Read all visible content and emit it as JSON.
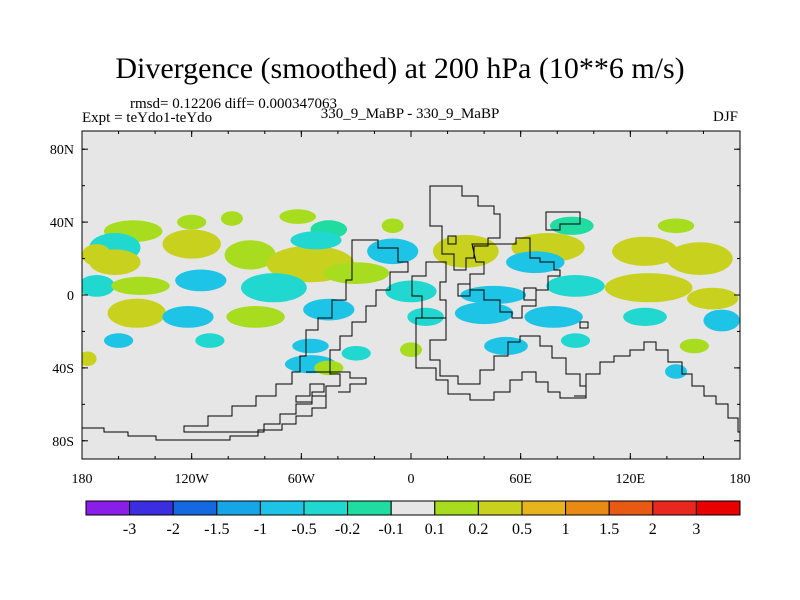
{
  "chart_data": {
    "type": "contour-map",
    "title": "Divergence (smoothed) at 200 hPa (10**6 m/s)",
    "stats": "rmsd= 0.12206 diff= 0.000347063",
    "left_label": "Expt = teYdo1-teYdo",
    "center_label": "330_9_MaBP - 330_9_MaBP",
    "right_label": "DJF",
    "xlim": [
      -180,
      180
    ],
    "ylim": [
      -90,
      90
    ],
    "x_ticks": [
      {
        "value": -180,
        "label": "180"
      },
      {
        "value": -120,
        "label": "120W"
      },
      {
        "value": -60,
        "label": "60W"
      },
      {
        "value": 0,
        "label": "0"
      },
      {
        "value": 60,
        "label": "60E"
      },
      {
        "value": 120,
        "label": "120E"
      },
      {
        "value": 180,
        "label": "180"
      }
    ],
    "y_ticks": [
      {
        "value": 80,
        "label": "80N"
      },
      {
        "value": 40,
        "label": "40N"
      },
      {
        "value": 0,
        "label": "0"
      },
      {
        "value": -40,
        "label": "40S"
      },
      {
        "value": -80,
        "label": "80S"
      }
    ],
    "colorbar": {
      "labels": [
        "-3",
        "-2",
        "-1.5",
        "-1",
        "-0.5",
        "-0.2",
        "-0.1",
        "0.1",
        "0.2",
        "0.5",
        "1",
        "1.5",
        "2",
        "3"
      ],
      "colors": [
        "#8a1ee8",
        "#3a2ee0",
        "#1468e0",
        "#14a6e6",
        "#1ec4e6",
        "#20d8d0",
        "#20dca0",
        "#e6e6e6",
        "#a8dc1e",
        "#c8d21e",
        "#e8b41e",
        "#e88a14",
        "#e85a14",
        "#e8281e",
        "#e80000"
      ]
    },
    "map_background": "#e6e6e6",
    "blobs": [
      {
        "lon": -152,
        "lat": 35,
        "w": 16,
        "h": 6,
        "c": 8
      },
      {
        "lon": -120,
        "lat": 40,
        "w": 8,
        "h": 4,
        "c": 8
      },
      {
        "lon": -98,
        "lat": 42,
        "w": 6,
        "h": 4,
        "c": 8
      },
      {
        "lon": -62,
        "lat": 43,
        "w": 10,
        "h": 4,
        "c": 8
      },
      {
        "lon": -45,
        "lat": 36,
        "w": 10,
        "h": 5,
        "c": 6
      },
      {
        "lon": -10,
        "lat": 38,
        "w": 6,
        "h": 4,
        "c": 8
      },
      {
        "lon": 88,
        "lat": 38,
        "w": 12,
        "h": 5,
        "c": 6
      },
      {
        "lon": 145,
        "lat": 38,
        "w": 10,
        "h": 4,
        "c": 8
      },
      {
        "lon": -162,
        "lat": 26,
        "w": 14,
        "h": 8,
        "c": 5
      },
      {
        "lon": -162,
        "lat": 18,
        "w": 14,
        "h": 7,
        "c": 9
      },
      {
        "lon": -120,
        "lat": 28,
        "w": 16,
        "h": 8,
        "c": 9
      },
      {
        "lon": -88,
        "lat": 22,
        "w": 14,
        "h": 8,
        "c": 8
      },
      {
        "lon": -55,
        "lat": 17,
        "w": 24,
        "h": 10,
        "c": 9
      },
      {
        "lon": -52,
        "lat": 30,
        "w": 14,
        "h": 5,
        "c": 5
      },
      {
        "lon": -10,
        "lat": 24,
        "w": 14,
        "h": 7,
        "c": 4
      },
      {
        "lon": 30,
        "lat": 24,
        "w": 18,
        "h": 9,
        "c": 9
      },
      {
        "lon": 75,
        "lat": 26,
        "w": 20,
        "h": 8,
        "c": 9
      },
      {
        "lon": 68,
        "lat": 18,
        "w": 16,
        "h": 6,
        "c": 4
      },
      {
        "lon": 128,
        "lat": 24,
        "w": 18,
        "h": 8,
        "c": 9
      },
      {
        "lon": 158,
        "lat": 20,
        "w": 18,
        "h": 9,
        "c": 9
      },
      {
        "lon": -172,
        "lat": 22,
        "w": 8,
        "h": 6,
        "c": 9
      },
      {
        "lon": -172,
        "lat": 5,
        "w": 10,
        "h": 6,
        "c": 5
      },
      {
        "lon": -148,
        "lat": 5,
        "w": 16,
        "h": 5,
        "c": 8
      },
      {
        "lon": -115,
        "lat": 8,
        "w": 14,
        "h": 6,
        "c": 4
      },
      {
        "lon": -75,
        "lat": 4,
        "w": 18,
        "h": 8,
        "c": 5
      },
      {
        "lon": -30,
        "lat": 12,
        "w": 18,
        "h": 6,
        "c": 8
      },
      {
        "lon": 0,
        "lat": 2,
        "w": 14,
        "h": 6,
        "c": 5
      },
      {
        "lon": 45,
        "lat": 0,
        "w": 18,
        "h": 5,
        "c": 4
      },
      {
        "lon": 90,
        "lat": 5,
        "w": 16,
        "h": 6,
        "c": 5
      },
      {
        "lon": 130,
        "lat": 4,
        "w": 24,
        "h": 8,
        "c": 9
      },
      {
        "lon": 165,
        "lat": -2,
        "w": 14,
        "h": 6,
        "c": 9
      },
      {
        "lon": -150,
        "lat": -10,
        "w": 16,
        "h": 8,
        "c": 9
      },
      {
        "lon": -122,
        "lat": -12,
        "w": 14,
        "h": 6,
        "c": 4
      },
      {
        "lon": -85,
        "lat": -12,
        "w": 16,
        "h": 6,
        "c": 8
      },
      {
        "lon": -45,
        "lat": -8,
        "w": 14,
        "h": 6,
        "c": 4
      },
      {
        "lon": 8,
        "lat": -12,
        "w": 10,
        "h": 5,
        "c": 5
      },
      {
        "lon": 40,
        "lat": -10,
        "w": 16,
        "h": 6,
        "c": 4
      },
      {
        "lon": 78,
        "lat": -12,
        "w": 16,
        "h": 6,
        "c": 4
      },
      {
        "lon": 128,
        "lat": -12,
        "w": 12,
        "h": 5,
        "c": 5
      },
      {
        "lon": 170,
        "lat": -14,
        "w": 10,
        "h": 6,
        "c": 4
      },
      {
        "lon": -160,
        "lat": -25,
        "w": 8,
        "h": 4,
        "c": 4
      },
      {
        "lon": -110,
        "lat": -25,
        "w": 8,
        "h": 4,
        "c": 5
      },
      {
        "lon": -55,
        "lat": -28,
        "w": 10,
        "h": 4,
        "c": 4
      },
      {
        "lon": -30,
        "lat": -32,
        "w": 8,
        "h": 4,
        "c": 5
      },
      {
        "lon": 0,
        "lat": -30,
        "w": 6,
        "h": 4,
        "c": 8
      },
      {
        "lon": 52,
        "lat": -28,
        "w": 12,
        "h": 5,
        "c": 4
      },
      {
        "lon": 90,
        "lat": -25,
        "w": 8,
        "h": 4,
        "c": 5
      },
      {
        "lon": 155,
        "lat": -28,
        "w": 8,
        "h": 4,
        "c": 8
      },
      {
        "lon": -177,
        "lat": -35,
        "w": 5,
        "h": 4,
        "c": 9
      },
      {
        "lon": -55,
        "lat": -38,
        "w": 14,
        "h": 5,
        "c": 4
      },
      {
        "lon": -45,
        "lat": -40,
        "w": 8,
        "h": 4,
        "c": 8
      },
      {
        "lon": 145,
        "lat": -42,
        "w": 6,
        "h": 4,
        "c": 4
      }
    ],
    "coastlines": [
      "M 430 186 L 462 186 L 462 196 L 478 196 L 478 206 L 494 206 L 494 214 L 500 214 L 500 238 L 488 238 L 488 246 L 474 246 L 474 258 L 466 258 L 466 270 L 454 270 L 454 254 L 442 254 L 442 226 L 430 226 Z",
      "M 546 212 L 580 212 L 580 224 L 560 224 L 560 230 L 546 230 Z",
      "M 472 244 L 516 244 L 516 238 L 530 238 L 530 258 L 540 258 L 540 262 L 554 262 L 554 270 L 560 270 L 560 276 L 548 276 L 548 290 L 536 290 L 536 306 L 522 306 L 522 318 L 512 318 L 512 312 L 500 312 L 500 300 L 484 300 L 484 290 L 470 290 L 470 274 L 484 274 L 484 262 L 476 262 Z",
      "M 524 288 L 536 288 L 536 300 L 524 300 Z",
      "M 352 240 L 378 240 L 378 248 L 398 248 L 398 262 L 408 262 L 408 272 L 390 272 L 390 290 L 376 290 L 376 306 L 366 306 L 366 322 L 352 322 L 352 336 L 340 336 L 340 350 L 330 350 L 330 374 L 340 374 L 340 386 L 326 386 L 326 396 L 312 396 L 312 404 L 296 404 L 296 414 L 280 414 L 280 424 L 264 424 L 264 432 L 184 432 L 184 426 L 208 426 L 208 416 L 232 416 L 232 406 L 256 406 L 256 396 L 276 396 L 276 384 L 292 384 L 292 372 L 300 372 L 300 356 L 306 356 L 306 330 L 318 330 L 318 318 L 332 318 L 332 300 L 346 300 L 346 280 L 352 280 Z",
      "M 426 262 L 446 262 L 446 282 L 440 282 L 440 300 L 446 300 L 446 318 L 422 318 L 422 296 L 412 296 L 412 276 L 426 276 Z",
      "M 416 318 L 446 318 L 446 340 L 430 340 L 430 360 L 440 360 L 440 376 L 458 376 L 458 384 L 480 384 L 480 370 L 494 370 L 494 356 L 508 356 L 508 342 L 520 342 L 520 336 L 540 336 L 540 346 L 552 346 L 552 358 L 566 358 L 566 374 L 580 374 L 580 386 L 586 386 L 586 398 L 560 398 L 560 392 L 548 392 L 548 382 L 536 382 L 536 372 L 522 372 L 522 380 L 510 380 L 510 392 L 494 392 L 494 400 L 470 400 L 470 394 L 448 394 L 448 380 L 436 380 L 436 368 L 416 368 Z",
      "M 574 396 L 586 396 L 586 374 L 600 374 L 600 362 L 614 362 L 614 356 L 630 356 L 630 350 L 644 350 L 644 342 L 656 342 L 656 350 L 668 350 L 668 362 L 682 362 L 682 374 L 692 374 L 692 386 L 704 386 L 704 396 L 716 396 L 716 404 L 728 404 L 728 418 L 738 418 L 738 432 L 740 432",
      "M 82 428 L 104 428 L 104 432 L 128 432 L 128 436 L 156 436 L 156 440 L 230 440 L 230 436 L 258 436 L 258 430 L 282 430 L 282 424 L 296 424 L 296 416 L 312 416 L 312 408 L 326 408 L 326 396",
      "M 296 396 L 310 396 L 310 384 L 324 384 L 324 392 L 312 392 L 312 402 L 296 402 Z",
      "M 306 372 L 350 372 L 350 378 L 366 378 L 366 384 L 350 384 L 350 392 L 338 392",
      "M 458 284 L 470 284 L 470 296 L 458 296 Z",
      "M 580 322 L 588 322 L 588 328 L 580 328 Z",
      "M 448 236 L 456 236 L 456 244 L 448 244 Z"
    ]
  }
}
